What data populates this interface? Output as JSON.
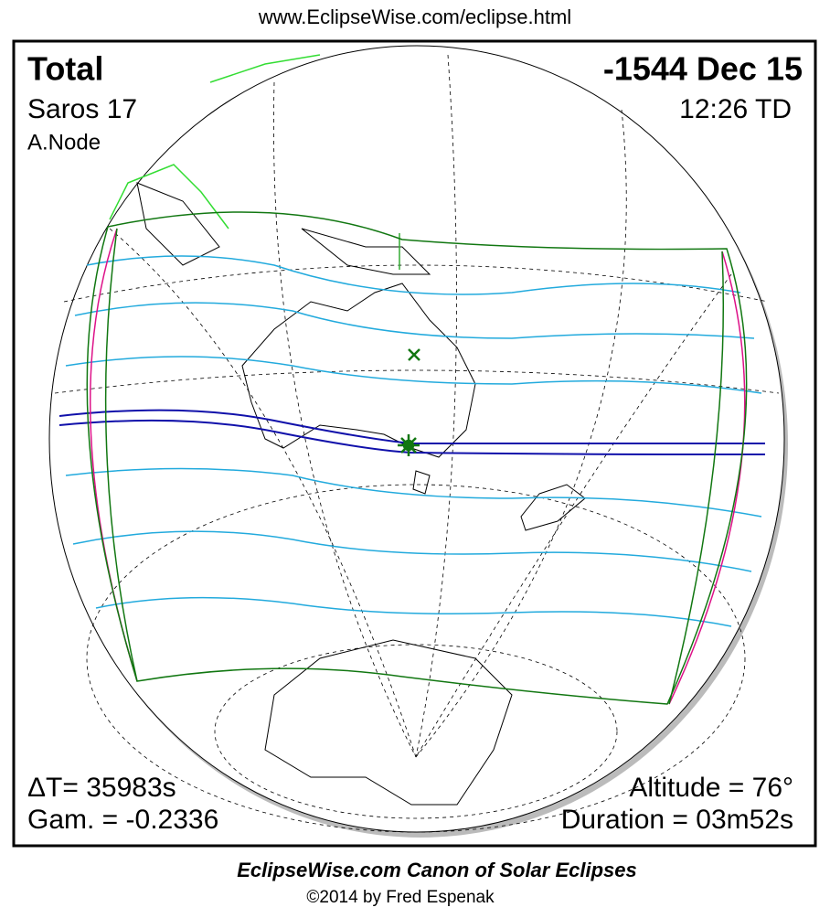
{
  "header": {
    "url": "www.EclipseWise.com/eclipse.html"
  },
  "panel": {
    "top_left": {
      "type": "Total",
      "saros": "Saros  17",
      "node": "A.Node"
    },
    "top_right": {
      "date": "-1544 Dec 15",
      "time": "12:26 TD"
    },
    "bottom_left": {
      "delta_t": "ΔT=  35983s",
      "gamma": "Gam. = -0.2336"
    },
    "bottom_right": {
      "altitude": "Altitude = 76°",
      "duration": "Duration = 03m52s"
    }
  },
  "footer": {
    "title": "EclipseWise.com Canon of Solar Eclipses",
    "credit": "©2014 by Fred Espenak"
  }
}
